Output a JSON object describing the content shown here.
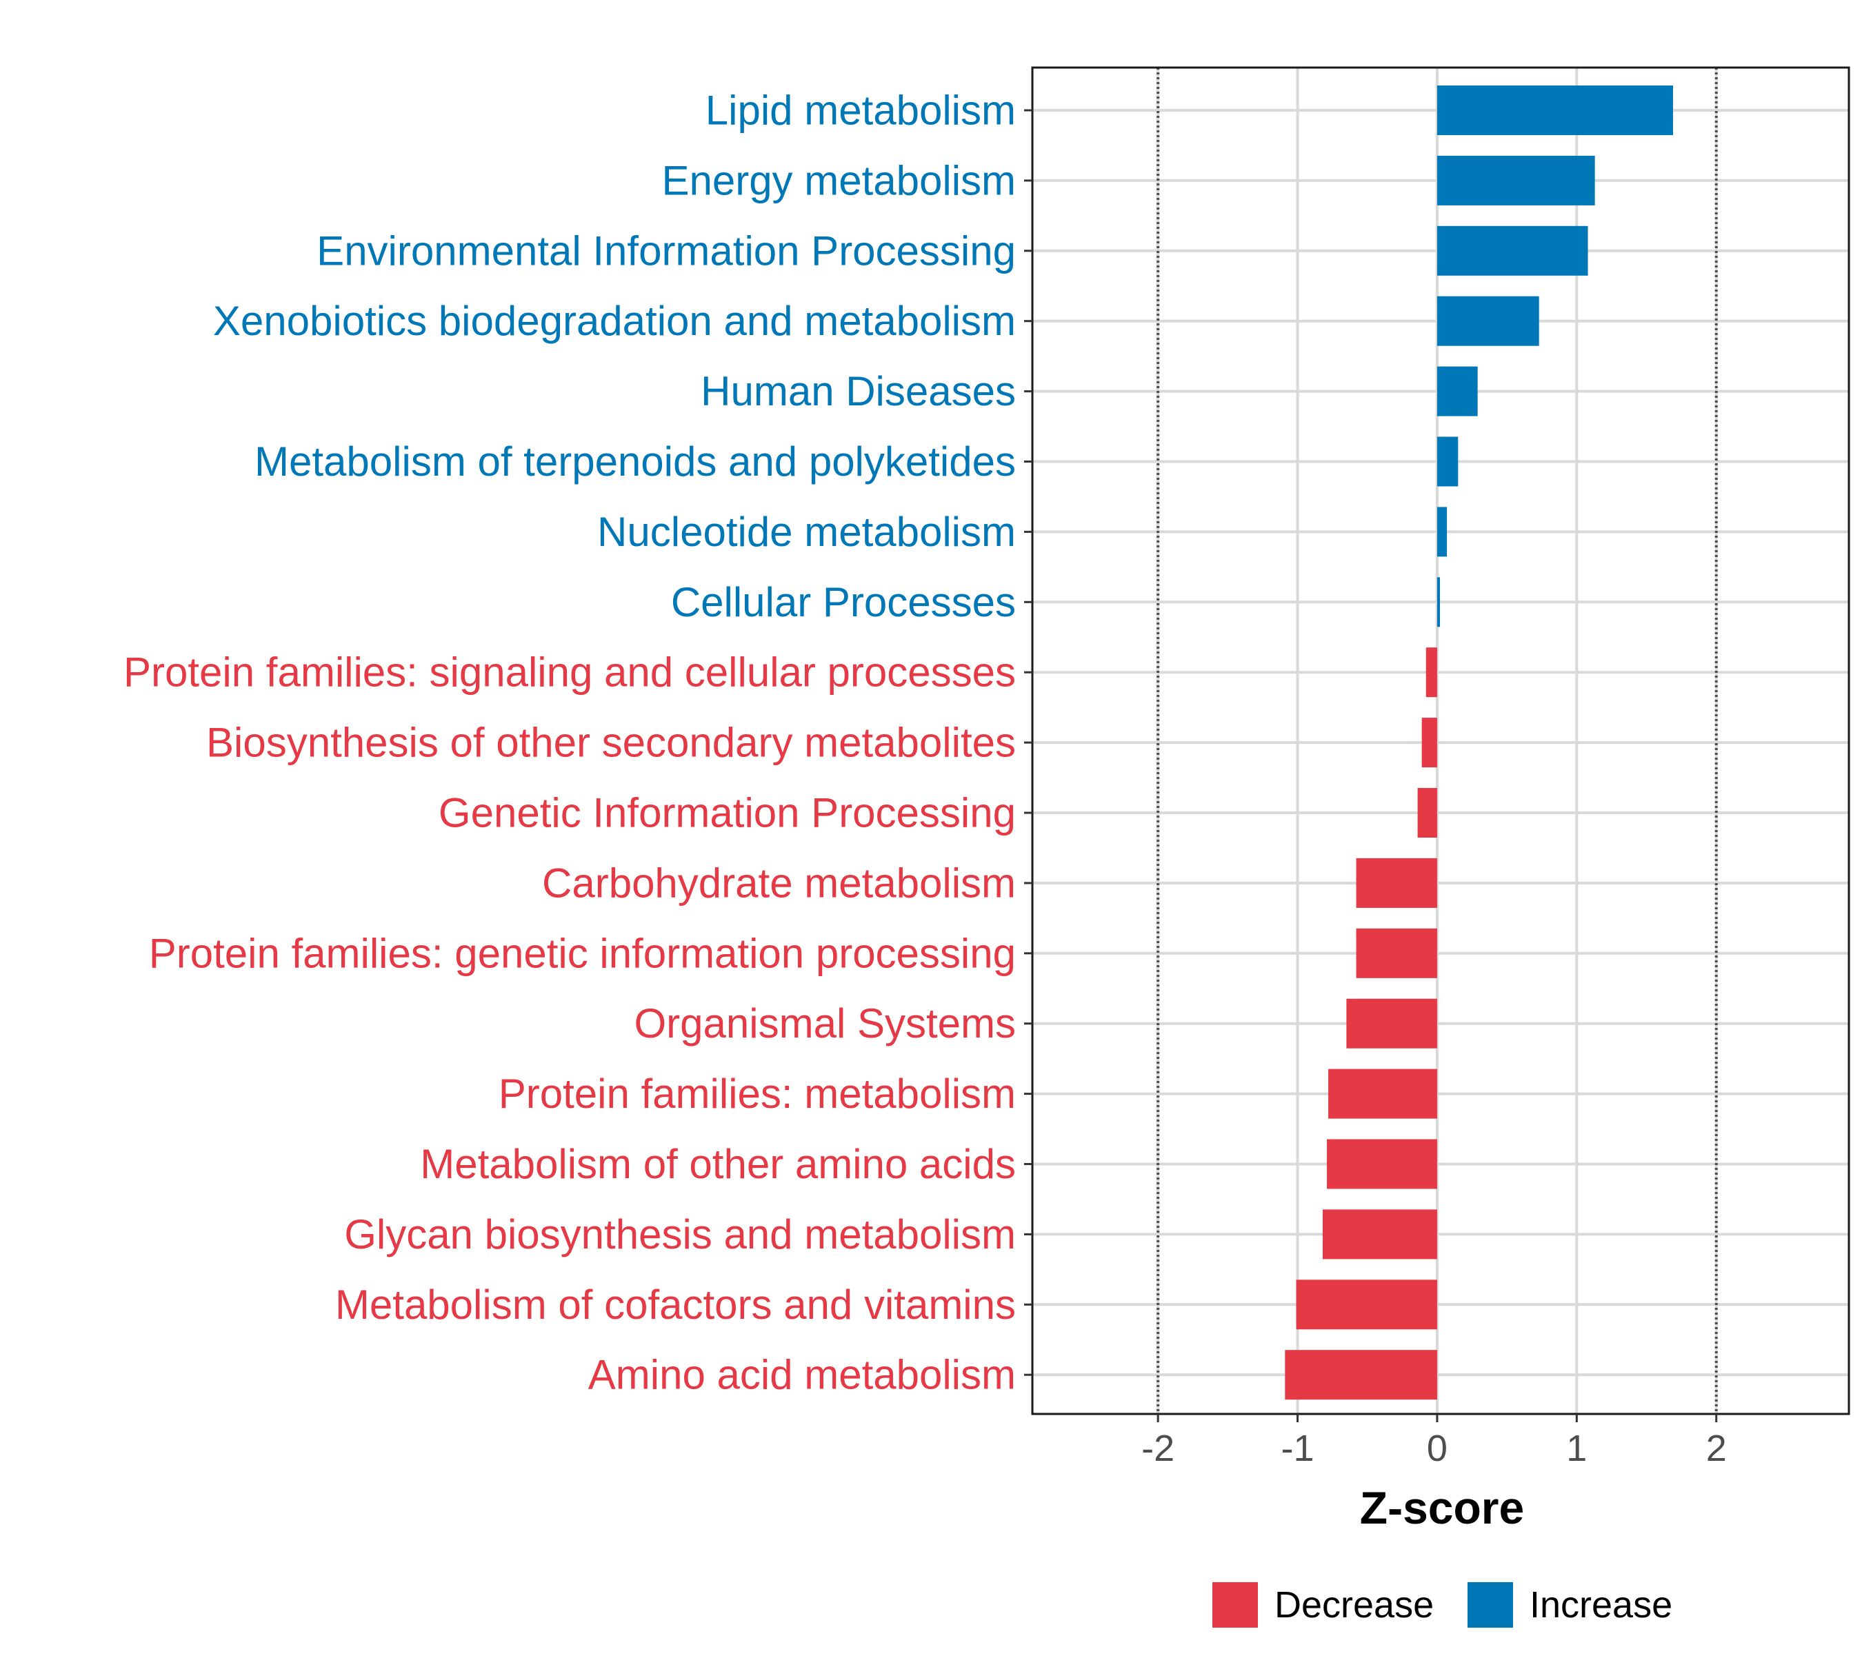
{
  "chart_data": {
    "type": "bar",
    "orientation": "horizontal",
    "title": "",
    "xlabel": "Z-score",
    "ylabel": "",
    "xlim": [
      -2.9,
      2.95
    ],
    "xticks": [
      -2,
      -1,
      0,
      1,
      2
    ],
    "xtick_labels": [
      "-2",
      "-1",
      "0",
      "1",
      "2"
    ],
    "reference_lines": [
      -2,
      2
    ],
    "grid": true,
    "legend_position": "bottom",
    "colors": {
      "Decrease": "#E63946",
      "Increase": "#0077B6"
    },
    "legend": [
      {
        "name": "Decrease",
        "color": "#E63946"
      },
      {
        "name": "Increase",
        "color": "#0077B6"
      }
    ],
    "categories": [
      "Lipid metabolism",
      "Energy metabolism",
      "Environmental Information Processing",
      "Xenobiotics biodegradation and metabolism",
      "Human Diseases",
      "Metabolism of terpenoids and polyketides",
      "Nucleotide metabolism",
      "Cellular Processes",
      "Protein families: signaling and cellular processes",
      "Biosynthesis of other secondary metabolites",
      "Genetic Information Processing",
      "Carbohydrate metabolism",
      "Protein families: genetic information processing",
      "Organismal Systems",
      "Protein families: metabolism",
      "Metabolism of other amino acids",
      "Glycan biosynthesis and metabolism",
      "Metabolism of cofactors and vitamins",
      "Amino acid metabolism"
    ],
    "values": [
      1.69,
      1.13,
      1.08,
      0.73,
      0.29,
      0.15,
      0.07,
      0.02,
      -0.08,
      -0.11,
      -0.14,
      -0.58,
      -0.58,
      -0.65,
      -0.78,
      -0.79,
      -0.82,
      -1.01,
      -1.09
    ],
    "groups": [
      "Increase",
      "Increase",
      "Increase",
      "Increase",
      "Increase",
      "Increase",
      "Increase",
      "Increase",
      "Decrease",
      "Decrease",
      "Decrease",
      "Decrease",
      "Decrease",
      "Decrease",
      "Decrease",
      "Decrease",
      "Decrease",
      "Decrease",
      "Decrease"
    ]
  }
}
